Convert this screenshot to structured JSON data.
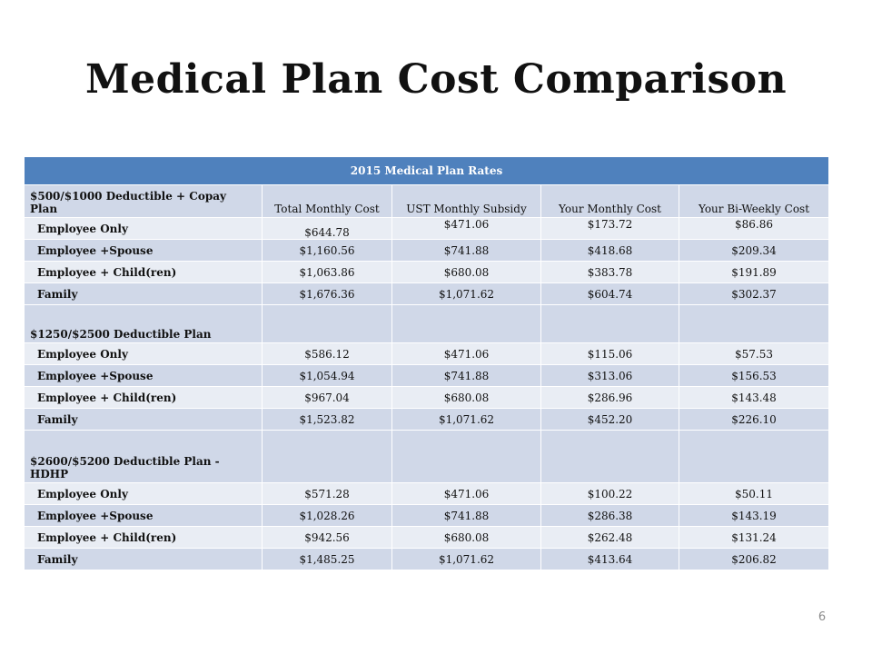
{
  "slide": {
    "title": "Medical Plan Cost Comparison",
    "page_number": "6"
  },
  "table": {
    "title": "2015 Medical Plan Rates",
    "columns": [
      "Total Monthly Cost",
      "UST Monthly Subsidy",
      "Your Monthly Cost",
      "Your Bi-Weekly Cost"
    ],
    "plans": [
      {
        "name": "$500/$1000 Deductible + Copay Plan",
        "rows": [
          {
            "tier": "Employee Only",
            "total": "$644.78",
            "subsidy": "$471.06",
            "monthly": "$173.72",
            "biweekly": "$86.86"
          },
          {
            "tier": "Employee +Spouse",
            "total": "$1,160.56",
            "subsidy": "$741.88",
            "monthly": "$418.68",
            "biweekly": "$209.34"
          },
          {
            "tier": "Employee + Child(ren)",
            "total": "$1,063.86",
            "subsidy": "$680.08",
            "monthly": "$383.78",
            "biweekly": "$191.89"
          },
          {
            "tier": "Family",
            "total": "$1,676.36",
            "subsidy": "$1,071.62",
            "monthly": "$604.74",
            "biweekly": "$302.37"
          }
        ]
      },
      {
        "name": "$1250/$2500 Deductible Plan",
        "rows": [
          {
            "tier": "Employee Only",
            "total": "$586.12",
            "subsidy": "$471.06",
            "monthly": "$115.06",
            "biweekly": "$57.53"
          },
          {
            "tier": "Employee +Spouse",
            "total": "$1,054.94",
            "subsidy": "$741.88",
            "monthly": "$313.06",
            "biweekly": "$156.53"
          },
          {
            "tier": "Employee + Child(ren)",
            "total": "$967.04",
            "subsidy": "$680.08",
            "monthly": "$286.96",
            "biweekly": "$143.48"
          },
          {
            "tier": "Family",
            "total": "$1,523.82",
            "subsidy": "$1,071.62",
            "monthly": "$452.20",
            "biweekly": "$226.10"
          }
        ]
      },
      {
        "name": "$2600/$5200 Deductible Plan - HDHP",
        "rows": [
          {
            "tier": "Employee Only",
            "total": "$571.28",
            "subsidy": "$471.06",
            "monthly": "$100.22",
            "biweekly": "$50.11"
          },
          {
            "tier": "Employee +Spouse",
            "total": "$1,028.26",
            "subsidy": "$741.88",
            "monthly": "$286.38",
            "biweekly": "$143.19"
          },
          {
            "tier": "Employee + Child(ren)",
            "total": "$942.56",
            "subsidy": "$680.08",
            "monthly": "$262.48",
            "biweekly": "$131.24"
          },
          {
            "tier": "Family",
            "total": "$1,485.25",
            "subsidy": "$1,071.62",
            "monthly": "$413.64",
            "biweekly": "$206.82"
          }
        ]
      }
    ]
  },
  "colors": {
    "header_blue": "#4f81bd",
    "band_dark": "#d0d8e8",
    "band_light": "#e9edf4"
  }
}
